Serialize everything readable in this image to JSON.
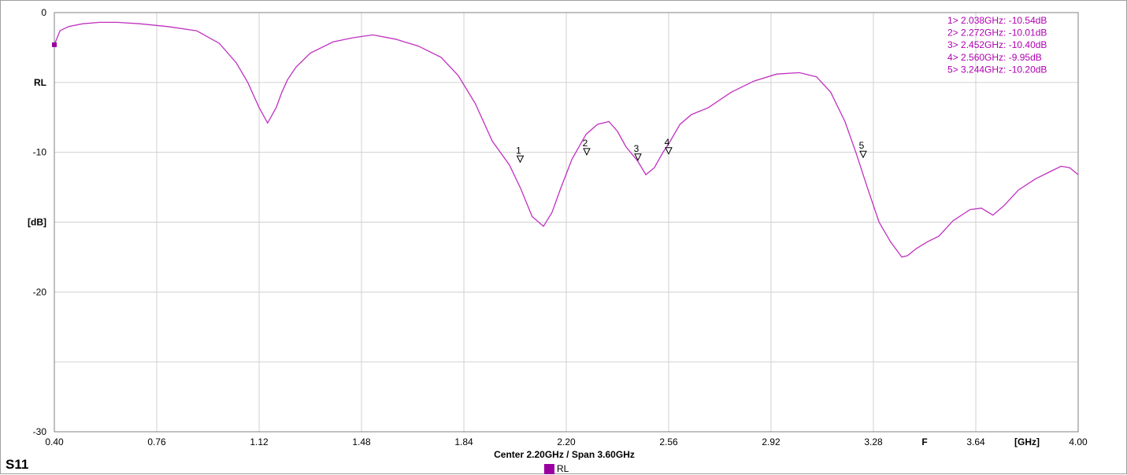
{
  "panel_title": "S11",
  "footer": {
    "center_span": "Center 2.20GHz / Span 3.60GHz"
  },
  "legend": {
    "label": "RL",
    "color": "#9a00a0"
  },
  "chart_data": {
    "type": "line",
    "xlim": [
      0.4,
      4.0
    ],
    "ylim": [
      -30,
      0
    ],
    "x_ticks": [
      "0.40",
      "0.76",
      "1.12",
      "1.48",
      "1.84",
      "2.20",
      "2.56",
      "2.92",
      "3.28",
      "3.64",
      "4.00"
    ],
    "x_tick_values": [
      0.4,
      0.76,
      1.12,
      1.48,
      1.84,
      2.2,
      2.56,
      2.92,
      3.28,
      3.64,
      4.0
    ],
    "x_extra_labels": [
      {
        "text": "F",
        "x": 3.46
      },
      {
        "text": "[GHz]",
        "x": 3.82
      }
    ],
    "y_ticks": [
      {
        "value": 0,
        "label": "0"
      },
      {
        "value": -5,
        "label": "RL"
      },
      {
        "value": -10,
        "label": "-10"
      },
      {
        "value": -15,
        "label": "[dB]"
      },
      {
        "value": -20,
        "label": "-20"
      },
      {
        "value": -25,
        "label": ""
      },
      {
        "value": -30,
        "label": "-30"
      }
    ],
    "grid": true,
    "trace_color": "#c030c0",
    "series": [
      {
        "name": "RL",
        "x": [
          0.4,
          0.42,
          0.45,
          0.5,
          0.56,
          0.62,
          0.7,
          0.8,
          0.9,
          0.98,
          1.04,
          1.08,
          1.12,
          1.15,
          1.18,
          1.2,
          1.22,
          1.25,
          1.3,
          1.38,
          1.45,
          1.52,
          1.6,
          1.68,
          1.76,
          1.82,
          1.88,
          1.94,
          2.0,
          2.04,
          2.08,
          2.12,
          2.15,
          2.18,
          2.22,
          2.27,
          2.31,
          2.35,
          2.38,
          2.41,
          2.45,
          2.48,
          2.51,
          2.54,
          2.56,
          2.6,
          2.64,
          2.7,
          2.78,
          2.86,
          2.94,
          3.02,
          3.08,
          3.13,
          3.18,
          3.22,
          3.26,
          3.3,
          3.34,
          3.38,
          3.4,
          3.43,
          3.47,
          3.51,
          3.56,
          3.62,
          3.66,
          3.7,
          3.74,
          3.79,
          3.85,
          3.9,
          3.94,
          3.97,
          4.0
        ],
        "y": [
          -2.3,
          -1.3,
          -1.0,
          -0.8,
          -0.7,
          -0.7,
          -0.8,
          -1.0,
          -1.3,
          -2.2,
          -3.6,
          -5.0,
          -6.8,
          -7.9,
          -6.8,
          -5.7,
          -4.8,
          -3.9,
          -2.9,
          -2.1,
          -1.8,
          -1.6,
          -1.9,
          -2.4,
          -3.2,
          -4.5,
          -6.5,
          -9.2,
          -10.9,
          -12.6,
          -14.6,
          -15.3,
          -14.3,
          -12.6,
          -10.5,
          -8.7,
          -8.0,
          -7.8,
          -8.5,
          -9.6,
          -10.6,
          -11.6,
          -11.1,
          -10.0,
          -9.4,
          -8.0,
          -7.3,
          -6.8,
          -5.7,
          -4.9,
          -4.4,
          -4.3,
          -4.6,
          -5.7,
          -7.8,
          -10.1,
          -12.6,
          -15.0,
          -16.4,
          -17.5,
          -17.4,
          -16.9,
          -16.4,
          -16.0,
          -14.9,
          -14.1,
          -14.0,
          -14.5,
          -13.8,
          -12.7,
          -11.9,
          -11.4,
          -11.0,
          -11.1,
          -11.6
        ]
      }
    ],
    "start_marker": {
      "x": 0.4,
      "y": -2.3
    },
    "markers": [
      {
        "id": "1",
        "x": 2.038,
        "y": -10.54,
        "readout": "1> 2.038GHz: -10.54dB"
      },
      {
        "id": "2",
        "x": 2.272,
        "y": -10.01,
        "readout": "2> 2.272GHz: -10.01dB"
      },
      {
        "id": "3",
        "x": 2.452,
        "y": -10.4,
        "readout": "3> 2.452GHz: -10.40dB"
      },
      {
        "id": "4",
        "x": 2.56,
        "y": -9.95,
        "readout": "4> 2.560GHz: -9.95dB"
      },
      {
        "id": "5",
        "x": 3.244,
        "y": -10.2,
        "readout": "5> 3.244GHz: -10.20dB"
      }
    ]
  }
}
